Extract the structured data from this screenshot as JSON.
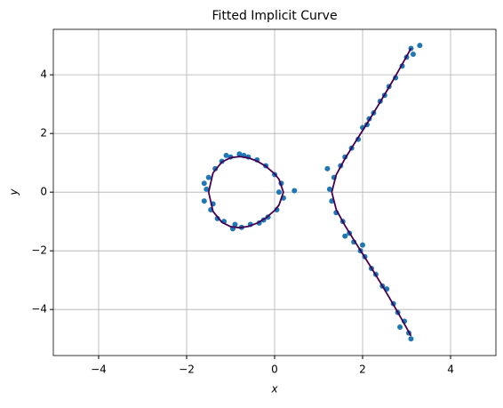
{
  "chart_data": {
    "type": "scatter",
    "title": "Fitted Implicit Curve",
    "x_label": "x",
    "y_label": "y",
    "xlim": [
      -5.03,
      5.03
    ],
    "ylim": [
      -5.57,
      5.55
    ],
    "xticks": [
      {
        "value": -4,
        "label": "−4"
      },
      {
        "value": -2,
        "label": "−2"
      },
      0,
      2,
      4
    ],
    "yticks": [
      {
        "value": -4,
        "label": "−4"
      },
      {
        "value": -2,
        "label": "−2"
      },
      0,
      2,
      4
    ],
    "grid": true,
    "series": [
      {
        "type": "scatter",
        "color": "#1f77b4",
        "x": [
          -1.55,
          -1.6,
          -1.5,
          -1.45,
          -1.35,
          -1.3,
          -1.2,
          -1.15,
          -1.0,
          -0.95,
          -0.8,
          -0.75,
          -0.6,
          -0.55,
          -0.4,
          -0.35,
          -0.2,
          -0.15,
          0,
          0.05,
          0.15,
          0.2,
          0.1,
          0.45,
          -1.6,
          -1.1,
          -0.25,
          -1.4,
          -0.7,
          -0.9,
          1.25,
          1.3,
          1.35,
          1.4,
          1.5,
          1.55,
          1.6,
          1.7,
          1.75,
          1.8,
          1.9,
          1.95,
          2.0,
          2.05,
          2.1,
          2.2,
          2.25,
          2.3,
          2.4,
          2.45,
          2.5,
          2.55,
          2.6,
          2.7,
          2.75,
          2.8,
          2.9,
          2.95,
          3.0,
          3.05,
          3.1,
          3.1,
          3.3,
          1.2,
          2.0,
          2.15,
          1.6,
          3.15,
          2.85
        ],
        "y": [
          0.1,
          -0.3,
          0.5,
          -0.6,
          0.8,
          -0.9,
          1.05,
          -1.0,
          1.2,
          -1.25,
          1.3,
          -1.2,
          1.2,
          -1.1,
          1.1,
          -1.05,
          0.9,
          -0.85,
          0.6,
          -0.6,
          0.3,
          -0.2,
          0.0,
          0.05,
          0.3,
          1.25,
          -0.95,
          -0.4,
          1.25,
          -1.1,
          0.1,
          -0.3,
          0.5,
          -0.7,
          0.9,
          -1.0,
          1.2,
          -1.4,
          1.5,
          -1.7,
          1.8,
          -2.0,
          2.2,
          -2.2,
          2.3,
          -2.6,
          2.7,
          -2.8,
          3.1,
          -3.2,
          3.3,
          -3.3,
          3.6,
          -3.8,
          3.9,
          -4.1,
          4.3,
          -4.4,
          4.6,
          -4.8,
          4.9,
          -5.0,
          5.0,
          0.8,
          -1.8,
          2.5,
          -1.5,
          4.7,
          -4.6
        ]
      },
      {
        "type": "line",
        "color": "#440154",
        "x": [
          -1.5,
          -1.4,
          -1.2,
          -1.0,
          -0.8,
          -0.6,
          -0.4,
          -0.2,
          0,
          0.1,
          0.2,
          0.1,
          0,
          -0.2,
          -0.4,
          -0.6,
          -0.8,
          -1.0,
          -1.2,
          -1.4,
          -1.5,
          null,
          3.1,
          3.0,
          2.8,
          2.6,
          2.4,
          2.2,
          2.0,
          1.8,
          1.6,
          1.4,
          1.3,
          1.4,
          1.6,
          1.8,
          2.0,
          2.2,
          2.4,
          2.6,
          2.8,
          3.0,
          3.1
        ],
        "y": [
          0,
          0.657,
          1.025,
          1.175,
          1.212,
          1.17,
          1.059,
          0.883,
          0.624,
          0.438,
          0,
          -0.438,
          -0.624,
          -0.883,
          -1.059,
          -1.17,
          -1.212,
          -1.175,
          -1.025,
          -0.657,
          0,
          null,
          4.9,
          4.628,
          4.095,
          3.577,
          3.072,
          2.581,
          2.1,
          1.625,
          1.141,
          0.59,
          0,
          -0.59,
          -1.141,
          -1.625,
          -2.1,
          -2.581,
          -3.072,
          -3.577,
          -4.095,
          -4.628,
          -4.9
        ]
      }
    ]
  }
}
